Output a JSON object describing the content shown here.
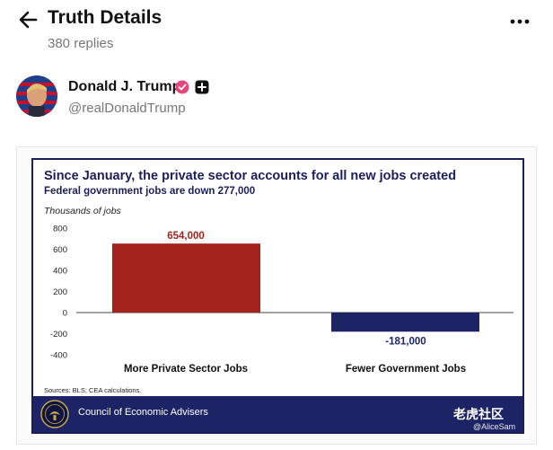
{
  "header": {
    "title": "Truth Details",
    "replies": "380 replies"
  },
  "author": {
    "name": "Donald J. Trump",
    "handle": "@realDonaldTrump"
  },
  "chart_data": {
    "type": "bar",
    "title": "Since January, the private sector accounts for all new jobs created",
    "subtitle": "Federal government jobs are down 277,000",
    "ylabel": "Thousands of jobs",
    "categories": [
      "More Private Sector Jobs",
      "Fewer Government Jobs"
    ],
    "values": [
      654,
      -181
    ],
    "data_labels": [
      "654,000",
      "-181,000"
    ],
    "yticks": [
      "800",
      "600",
      "400",
      "200",
      "0",
      "-200",
      "-400"
    ],
    "ylim": [
      -400,
      800
    ],
    "colors": [
      "#a3231c",
      "#1d2466"
    ],
    "grid": false,
    "source": "Sources: BLS; CEA calculations.",
    "footer": "Council of Economic Advisers"
  },
  "watermark": {
    "text": "老虎社区",
    "user": "@AliceSam"
  }
}
